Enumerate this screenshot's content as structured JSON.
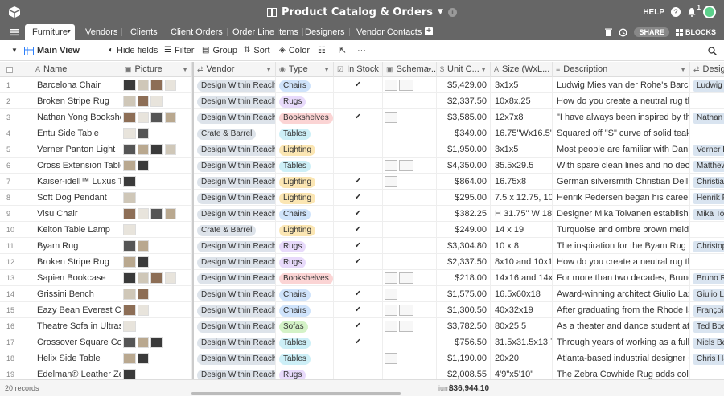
{
  "app": {
    "title": "Product Catalog & Orders",
    "help_label": "HELP",
    "notification_count": "1"
  },
  "tabs": [
    {
      "label": "Furniture",
      "active": true
    },
    {
      "label": "Vendors"
    },
    {
      "label": "Clients"
    },
    {
      "label": "Client Orders"
    },
    {
      "label": "Order Line Items"
    },
    {
      "label": "Designers"
    },
    {
      "label": "Vendor Contacts"
    }
  ],
  "tab_actions": {
    "share_label": "SHARE",
    "blocks_label": "BLOCKS"
  },
  "view": {
    "name": "Main View",
    "hide_fields": "Hide fields",
    "filter": "Filter",
    "group": "Group",
    "sort": "Sort",
    "color": "Color",
    "more": "···"
  },
  "columns": {
    "name": "Name",
    "picture": "Picture",
    "vendor": "Vendor",
    "type": "Type",
    "in_stock": "In Stock",
    "schematic": "Schema...",
    "unit_cost": "Unit C...",
    "size": "Size (WxL...",
    "description": "Description",
    "designer": "Design"
  },
  "rows": [
    {
      "n": "1",
      "name": "Barcelona Chair",
      "thumbs": 4,
      "vendor": "Design Within Reach",
      "type": "Chairs",
      "stock": true,
      "schem": 2,
      "cost": "$5,429.00",
      "size": "3x1x5",
      "desc": "Ludwig Mies van der Rohe's Barcelona C...",
      "designer": "Ludwig M"
    },
    {
      "n": "2",
      "name": "Broken Stripe Rug",
      "thumbs": 3,
      "vendor": "Design Within Reach",
      "type": "Rugs",
      "stock": false,
      "schem": 0,
      "cost": "$2,337.50",
      "size": "10x8x.25",
      "desc": "How do you create a neutral rug that also...",
      "designer": ""
    },
    {
      "n": "3",
      "name": "Nathan Yong Bookshelf",
      "thumbs": 4,
      "vendor": "Design Within Reach",
      "type": "Bookshelves",
      "stock": true,
      "schem": 1,
      "cost": "$3,585.00",
      "size": "12x7x8",
      "desc": "\"I have always been inspired by the langu...",
      "designer": "Nathan Yo"
    },
    {
      "n": "4",
      "name": "Entu Side Table",
      "thumbs": 2,
      "vendor": "Crate & Barrel",
      "type": "Tables",
      "stock": false,
      "schem": 0,
      "cost": "$349.00",
      "size": "16.75\"Wx16.5\"D...",
      "desc": "Squared off \"S\" curve of solid teak in a st...",
      "designer": ""
    },
    {
      "n": "5",
      "name": "Verner Panton Light",
      "thumbs": 4,
      "vendor": "Design Within Reach",
      "type": "Lighting",
      "stock": false,
      "schem": 0,
      "cost": "$1,950.00",
      "size": "3x1x5",
      "desc": "Most people are familiar with Danish desi...",
      "designer": "Verner Pa"
    },
    {
      "n": "6",
      "name": "Cross Extension Table",
      "thumbs": 2,
      "vendor": "Design Within Reach",
      "type": "Tables",
      "stock": false,
      "schem": 2,
      "cost": "$4,350.00",
      "size": "35.5x29.5",
      "desc": "With spare clean lines and no decorative ...",
      "designer": "Matthew H"
    },
    {
      "n": "7",
      "name": "Kaiser-idell™ Luxus Tabl...",
      "thumbs": 1,
      "vendor": "Design Within Reach",
      "type": "Lighting",
      "stock": true,
      "schem": 1,
      "cost": "$864.00",
      "size": "16.75x8",
      "desc": "German silversmith Christian Dell was a ...",
      "designer": "Christian"
    },
    {
      "n": "8",
      "name": "Soft Dog Pendant",
      "thumbs": 1,
      "vendor": "Design Within Reach",
      "type": "Lighting",
      "stock": true,
      "schem": 0,
      "cost": "$295.00",
      "size": "7.5 x 12.75, 10.5 ...",
      "desc": "Henrik Pedersen began his career as a f...",
      "designer": "Henrik Pe"
    },
    {
      "n": "9",
      "name": "Visu Chair",
      "thumbs": 4,
      "vendor": "Design Within Reach",
      "type": "Chairs",
      "stock": true,
      "schem": 0,
      "cost": "$382.25",
      "size": "H 31.75\" W 18\" ...",
      "desc": "Designer Mika Tolvanen established his ...",
      "designer": "Mika Tolva"
    },
    {
      "n": "10",
      "name": "Kelton Table Lamp",
      "thumbs": 1,
      "vendor": "Crate & Barrel",
      "type": "Lighting",
      "stock": true,
      "schem": 0,
      "cost": "$249.00",
      "size": "14 x 19",
      "desc": "Turquoise and ombre brown meld in glos...",
      "designer": ""
    },
    {
      "n": "11",
      "name": "Byam Rug",
      "thumbs": 2,
      "vendor": "Design Within Reach",
      "type": "Rugs",
      "stock": true,
      "schem": 0,
      "cost": "$3,304.80",
      "size": "10 x 8",
      "desc": "The inspiration for the Byam Rug (2011) c...",
      "designer": "Christoph"
    },
    {
      "n": "12",
      "name": "Broken Stripe Rug",
      "thumbs": 2,
      "vendor": "Design Within Reach",
      "type": "Rugs",
      "stock": true,
      "schem": 0,
      "cost": "$2,337.50",
      "size": "8x10 and 10x12",
      "desc": "How do you create a neutral rug that also...",
      "designer": ""
    },
    {
      "n": "13",
      "name": "Sapien Bookcase",
      "thumbs": 4,
      "vendor": "Design Within Reach",
      "type": "Bookshelves",
      "stock": false,
      "schem": 2,
      "cost": "$218.00",
      "size": "14x16 and 14x7...",
      "desc": "For more than two decades, Bruno Raina...",
      "designer": "Bruno Rai"
    },
    {
      "n": "14",
      "name": "Grissini Bench",
      "thumbs": 2,
      "vendor": "Design Within Reach",
      "type": "Chairs",
      "stock": true,
      "schem": 1,
      "cost": "$1,575.00",
      "size": "16.5x60x18",
      "desc": "Award-winning architect Giulio Lazzotti, ...",
      "designer": "Giulio Laz"
    },
    {
      "n": "15",
      "name": "Eazy Bean Everest Chair",
      "thumbs": 2,
      "vendor": "Design Within Reach",
      "type": "Chairs",
      "stock": true,
      "schem": 2,
      "cost": "$1,300.50",
      "size": "40x32x19",
      "desc": "After graduating from the Rhode Island S...",
      "designer": "Françoise"
    },
    {
      "n": "16",
      "name": "Theatre Sofa in Ultrasuede",
      "thumbs": 1,
      "vendor": "Design Within Reach",
      "type": "Sofas",
      "stock": true,
      "schem": 2,
      "cost": "$3,782.50",
      "size": "80x25.5",
      "desc": "As a theater and dance student at the Un...",
      "designer": "Ted Boern"
    },
    {
      "n": "17",
      "name": "Crossover Square Coffee ...",
      "thumbs": 3,
      "vendor": "Design Within Reach",
      "type": "Tables",
      "stock": true,
      "schem": 0,
      "cost": "$756.50",
      "size": "31.5x31.5x13.75",
      "desc": "Through years of working as a full-time d...",
      "designer": "Niels Ben"
    },
    {
      "n": "18",
      "name": "Helix Side Table",
      "thumbs": 2,
      "vendor": "Design Within Reach",
      "type": "Tables",
      "stock": false,
      "schem": 1,
      "cost": "$1,190.00",
      "size": "20x20",
      "desc": "Atlanta-based industrial designer Chris ...",
      "designer": "Chris Har"
    },
    {
      "n": "19",
      "name": "Edelman® Leather Zebra ...",
      "thumbs": 1,
      "vendor": "Design Within Reach",
      "type": "Rugs",
      "stock": false,
      "schem": 0,
      "cost": "$2,008.55",
      "size": "4'9\"x5'10\"",
      "desc": "The Zebra Cowhide Rug adds color, text...",
      "designer": ""
    }
  ],
  "footer": {
    "records": "20 records",
    "sum_label": "ium",
    "sum_value": "$36,944.10"
  }
}
